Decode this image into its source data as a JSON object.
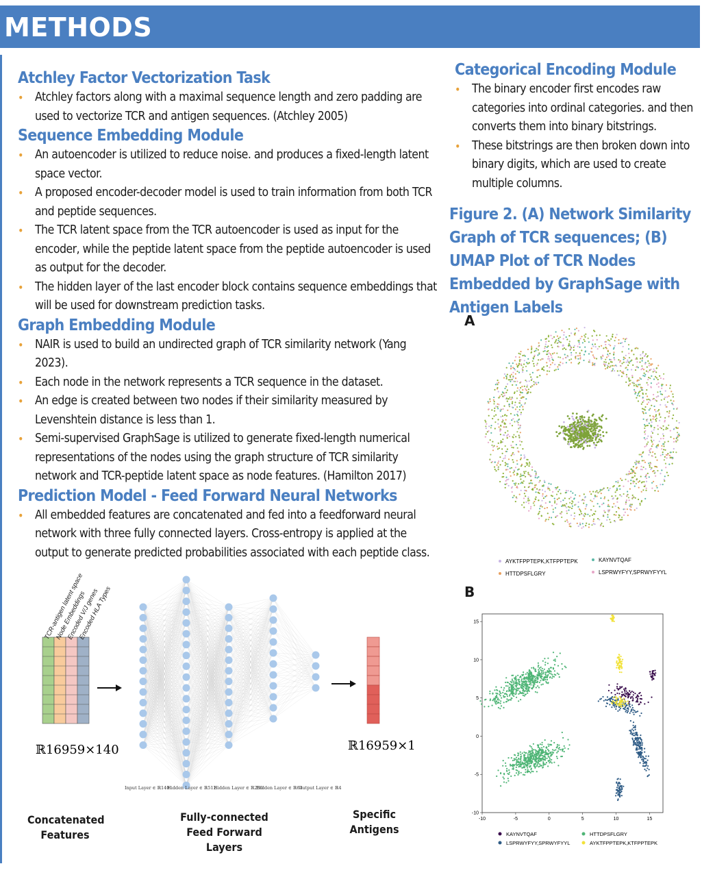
{
  "banner": {
    "title": "METHODS"
  },
  "left": {
    "sections": [
      {
        "heading": "Atchley Factor Vectorization Task",
        "bullets": [
          "Atchley factors along with a maximal sequence length and zero padding are used to vectorize TCR and antigen sequences. (Atchley 2005)"
        ]
      },
      {
        "heading": "Sequence Embedding Module",
        "bullets": [
          "An autoencoder is utilized to reduce noise. and produces a fixed-length latent space vector.",
          "A proposed encoder-decoder model is used to train information from both TCR and peptide sequences.",
          "The TCR latent space from the TCR autoencoder is used as input for the encoder, while the peptide latent space from the peptide autoencoder is used as output for the decoder.",
          "The hidden layer of the last encoder block contains sequence embeddings that will be used for downstream prediction tasks."
        ]
      },
      {
        "heading": "Graph Embedding Module",
        "bullets": [
          "NAIR is used to build an undirected graph of TCR similarity network (Yang 2023).",
          "Each node in the network represents a TCR sequence in the dataset.",
          "An edge is created between two nodes if their similarity measured by Levenshtein distance is less than 1.",
          "Semi-supervised GraphSage is utilized to generate fixed-length numerical representations of the nodes using the graph structure of TCR similarity network and TCR-peptide latent space as node features. (Hamilton 2017)"
        ]
      },
      {
        "heading": "Prediction Model - Feed Forward Neural Networks",
        "bullets": [
          "All embedded features are concatenated and fed into a feedforward neural network with three fully connected layers. Cross-entropy is applied at the output to generate predicted probabilities associated with each peptide class."
        ]
      }
    ]
  },
  "right": {
    "heading": "Categorical Encoding Module",
    "bullets": [
      "The binary encoder first encodes raw categories into ordinal categories. and then converts them into binary bitstrings.",
      "These bitstrings are then broken down into binary digits, which are used to create multiple columns."
    ],
    "figure_caption": "Figure 2. (A) Network Similarity Graph of TCR sequences; (B) UMAP Plot of TCR Nodes Embedded by GraphSage with Antigen Labels"
  },
  "diagram": {
    "feature_labels": [
      "TCR-antigen latent space",
      "Node Embeddings",
      "Encoded V/J genes",
      "Encoded HLA Types"
    ],
    "input_dim": "ℝ16959×140",
    "output_dim": "ℝ16959×1",
    "layer_labels": [
      "Input Layer ∈ ℝ140",
      "Hidden Layer ∈ ℝ512",
      "Hidden Layer ∈ ℝ256",
      "Hidden Layer ∈ ℝ64",
      "Output Layer ∈ ℝ4"
    ],
    "caption_left": "Concatenated Features",
    "caption_mid": "Fully-connected Feed Forward Layers",
    "caption_right": "Specific Antigens"
  },
  "panelA": {
    "letter": "A",
    "legend": [
      {
        "label": "AYKTFPPTEPK,KTFPPTEPK",
        "color": "#c9b6e4"
      },
      {
        "label": "KAYNVTQAF",
        "color": "#5bb8a6"
      },
      {
        "label": "HTTDPSFLGRY",
        "color": "#e8a060"
      },
      {
        "label": "LSPRWYFYY,SPRWYFYYL",
        "color": "#e7a6c8"
      }
    ]
  },
  "chart_data": {
    "type": "scatter",
    "title": "",
    "xlabel": "",
    "ylabel": "",
    "xlim": [
      -10,
      17
    ],
    "ylim": [
      -10,
      16
    ],
    "xticks": [
      -10,
      -5,
      0,
      5,
      10,
      15
    ],
    "yticks": [
      -10,
      -5,
      0,
      5,
      10,
      15
    ],
    "legend_position": "bottom",
    "series": [
      {
        "name": "KAYNVTQAF",
        "color": "#3b0f4e"
      },
      {
        "name": "HTTDPSFLGRY",
        "color": "#4fb576"
      },
      {
        "name": "LSPRWYFYY,SPRWYFYYL",
        "color": "#2f5c86"
      },
      {
        "name": "AYKTFPPTEPK,KTFPPTEPK",
        "color": "#f2e23a"
      }
    ]
  }
}
